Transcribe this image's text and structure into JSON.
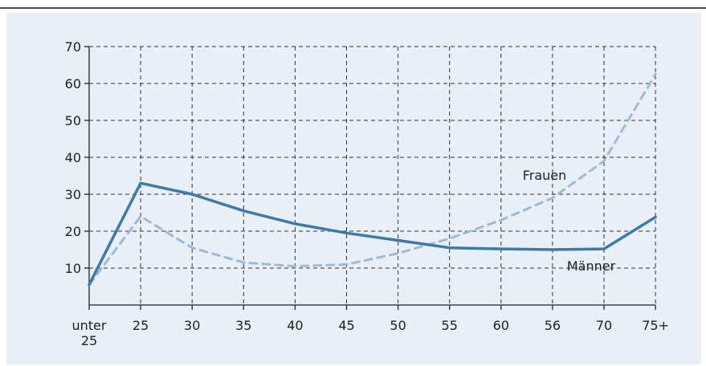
{
  "chart_data": {
    "type": "line",
    "categories": [
      "unter 25",
      "25",
      "30",
      "35",
      "40",
      "45",
      "50",
      "55",
      "60",
      "56",
      "70",
      "75+"
    ],
    "ylim": [
      0,
      70
    ],
    "yticks": [
      10,
      20,
      30,
      40,
      50,
      60,
      70
    ],
    "grid": true,
    "series": [
      {
        "name": "Männer",
        "values": [
          5.5,
          33,
          30,
          25.5,
          22,
          19.5,
          17.5,
          15.5,
          15.2,
          15,
          15.2,
          23.8
        ],
        "color": "#3d7aab",
        "style": "solid"
      },
      {
        "name": "Frauen",
        "values": [
          5.5,
          24,
          15.5,
          11.5,
          10.5,
          11,
          14,
          18,
          23,
          29,
          39,
          62.5
        ],
        "color": "#9dbad8",
        "style": "dashed"
      }
    ]
  }
}
